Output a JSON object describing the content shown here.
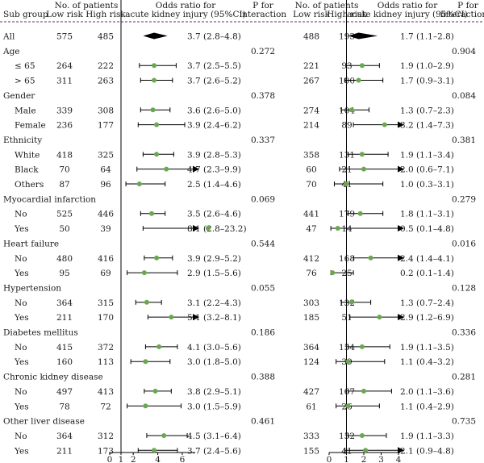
{
  "headers": {
    "subgroup": "Sub group",
    "num_patients": "No. of patients",
    "low_risk": "Low risk",
    "high_risk": "High risk",
    "or_line1": "Odds ratio for",
    "or_line2": "acute kidney injury (95%CI)",
    "p_line1": "P for",
    "p_line2": "interaction"
  },
  "colors": {
    "marker": "#6aa84f",
    "overall": "#000000",
    "line": "#000000",
    "divider": "#6b2a7a"
  },
  "chart_data": {
    "type": "forest",
    "panels": [
      {
        "id": "left",
        "axis_ticks": [
          "0",
          "1",
          "2",
          "4",
          "6"
        ],
        "rows": [
          {
            "label": "All",
            "kind": "overall",
            "low": "575",
            "high": "485",
            "or": 3.7,
            "lo": 2.8,
            "hi": 4.8,
            "text": "3.7 (2.8–4.8)",
            "p": ""
          },
          {
            "label": "Age",
            "kind": "group",
            "p": "0.272"
          },
          {
            "label": "≤ 65",
            "kind": "item",
            "low": "264",
            "high": "222",
            "or": 3.7,
            "lo": 2.5,
            "hi": 5.5,
            "text": "3.7 (2.5–5.5)",
            "p": ""
          },
          {
            "label": "> 65",
            "kind": "item",
            "low": "311",
            "high": "263",
            "or": 3.7,
            "lo": 2.6,
            "hi": 5.2,
            "text": "3.7 (2.6–5.2)",
            "p": ""
          },
          {
            "label": "Gender",
            "kind": "group",
            "p": "0.378"
          },
          {
            "label": "Male",
            "kind": "item",
            "low": "339",
            "high": "308",
            "or": 3.6,
            "lo": 2.6,
            "hi": 5.0,
            "text": "3.6 (2.6–5.0)",
            "p": ""
          },
          {
            "label": "Female",
            "kind": "item",
            "low": "236",
            "high": "177",
            "or": 3.9,
            "lo": 2.4,
            "hi": 6.2,
            "text": "3.9 (2.4–6.2)",
            "p": ""
          },
          {
            "label": "Ethnicity",
            "kind": "group",
            "p": "0.337"
          },
          {
            "label": "White",
            "kind": "item",
            "low": "418",
            "high": "325",
            "or": 3.9,
            "lo": 2.8,
            "hi": 5.3,
            "text": "3.9 (2.8–5.3)",
            "p": ""
          },
          {
            "label": "Black",
            "kind": "item",
            "low": "70",
            "high": "64",
            "or": 4.7,
            "lo": 2.3,
            "hi": 9.9,
            "text": "4.7 (2.3–9.9)",
            "p": ""
          },
          {
            "label": "Others",
            "kind": "item",
            "low": "87",
            "high": "96",
            "or": 2.5,
            "lo": 1.4,
            "hi": 4.6,
            "text": "2.5 (1.4–4.6)",
            "p": ""
          },
          {
            "label": "Myocardial infarction",
            "kind": "group",
            "p": "0.069"
          },
          {
            "label": "No",
            "kind": "item",
            "low": "525",
            "high": "446",
            "or": 3.5,
            "lo": 2.6,
            "hi": 4.6,
            "text": "3.5 (2.6–4.6)",
            "p": ""
          },
          {
            "label": "Yes",
            "kind": "item",
            "low": "50",
            "high": "39",
            "or": 8.1,
            "lo": 2.8,
            "hi": 23.2,
            "text": "8.1 (2.8–23.2)",
            "p": ""
          },
          {
            "label": "Heart failure",
            "kind": "group",
            "p": "0.544"
          },
          {
            "label": "No",
            "kind": "item",
            "low": "480",
            "high": "416",
            "or": 3.9,
            "lo": 2.9,
            "hi": 5.2,
            "text": "3.9 (2.9–5.2)",
            "p": ""
          },
          {
            "label": "Yes",
            "kind": "item",
            "low": "95",
            "high": "69",
            "or": 2.9,
            "lo": 1.5,
            "hi": 5.6,
            "text": "2.9 (1.5–5.6)",
            "p": ""
          },
          {
            "label": "Hypertension",
            "kind": "group",
            "p": "0.055"
          },
          {
            "label": "No",
            "kind": "item",
            "low": "364",
            "high": "315",
            "or": 3.1,
            "lo": 2.2,
            "hi": 4.3,
            "text": "3.1 (2.2–4.3)",
            "p": ""
          },
          {
            "label": "Yes",
            "kind": "item",
            "low": "211",
            "high": "170",
            "or": 5.1,
            "lo": 3.2,
            "hi": 8.1,
            "text": "5.1 (3.2–8.1)",
            "p": ""
          },
          {
            "label": "Diabetes mellitus",
            "kind": "group",
            "p": "0.186"
          },
          {
            "label": "No",
            "kind": "item",
            "low": "415",
            "high": "372",
            "or": 4.1,
            "lo": 3.0,
            "hi": 5.6,
            "text": "4.1 (3.0–5.6)",
            "p": ""
          },
          {
            "label": "Yes",
            "kind": "item",
            "low": "160",
            "high": "113",
            "or": 3.0,
            "lo": 1.8,
            "hi": 5.0,
            "text": "3.0 (1.8–5.0)",
            "p": ""
          },
          {
            "label": "Chronic kidney disease",
            "kind": "group",
            "p": "0.388"
          },
          {
            "label": "No",
            "kind": "item",
            "low": "497",
            "high": "413",
            "or": 3.8,
            "lo": 2.9,
            "hi": 5.1,
            "text": "3.8 (2.9–5.1)",
            "p": ""
          },
          {
            "label": "Yes",
            "kind": "item",
            "low": "78",
            "high": "72",
            "or": 3.0,
            "lo": 1.5,
            "hi": 5.9,
            "text": "3.0 (1.5–5.9)",
            "p": ""
          },
          {
            "label": "Other liver disease",
            "kind": "group",
            "p": "0.461"
          },
          {
            "label": "No",
            "kind": "item",
            "low": "364",
            "high": "312",
            "or": 4.5,
            "lo": 3.1,
            "hi": 6.4,
            "text": "4.5 (3.1–6.4)",
            "p": ""
          },
          {
            "label": "Yes",
            "kind": "item",
            "low": "211",
            "high": "173",
            "or": 3.7,
            "lo": 2.4,
            "hi": 5.6,
            "text": "3.7 (2.4–5.6)",
            "p": ""
          }
        ]
      },
      {
        "id": "right",
        "axis_ticks": [
          "0",
          "1",
          "2",
          "3",
          "4"
        ],
        "rows": [
          {
            "kind": "overall",
            "low": "488",
            "high": "193",
            "or": 1.7,
            "lo": 1.1,
            "hi": 2.8,
            "text": "1.7 (1.1–2.8)",
            "p": ""
          },
          {
            "kind": "group",
            "p": "0.904"
          },
          {
            "kind": "item",
            "low": "221",
            "high": "93",
            "or": 1.9,
            "lo": 1.0,
            "hi": 2.9,
            "text": "1.9 (1.0–2.9)",
            "p": ""
          },
          {
            "kind": "item",
            "low": "267",
            "high": "100",
            "or": 1.7,
            "lo": 0.9,
            "hi": 3.1,
            "text": "1.7 (0.9–3.1)",
            "p": ""
          },
          {
            "kind": "group",
            "p": "0.084"
          },
          {
            "kind": "item",
            "low": "274",
            "high": "104",
            "or": 1.3,
            "lo": 0.7,
            "hi": 2.3,
            "text": "1.3 (0.7–2.3)",
            "p": ""
          },
          {
            "kind": "item",
            "low": "214",
            "high": "89",
            "or": 3.2,
            "lo": 1.4,
            "hi": 7.3,
            "text": "3.2 (1.4–7.3)",
            "p": ""
          },
          {
            "kind": "group",
            "p": "0.381"
          },
          {
            "kind": "item",
            "low": "358",
            "high": "131",
            "or": 1.9,
            "lo": 1.1,
            "hi": 3.4,
            "text": "1.9 (1.1–3.4)",
            "p": ""
          },
          {
            "kind": "item",
            "low": "60",
            "high": "21",
            "or": 2.0,
            "lo": 0.6,
            "hi": 7.1,
            "text": "2.0 (0.6–7.1)",
            "p": ""
          },
          {
            "kind": "item",
            "low": "70",
            "high": "41",
            "or": 1.0,
            "lo": 0.3,
            "hi": 3.1,
            "text": "1.0 (0.3–3.1)",
            "p": ""
          },
          {
            "kind": "group",
            "p": "0.279"
          },
          {
            "kind": "item",
            "low": "441",
            "high": "179",
            "or": 1.8,
            "lo": 1.1,
            "hi": 3.1,
            "text": "1.8 (1.1–3.1)",
            "p": ""
          },
          {
            "kind": "item",
            "low": "47",
            "high": "14",
            "or": 0.5,
            "lo": 0.1,
            "hi": 4.8,
            "text": "0.5 (0.1–4.8)",
            "p": ""
          },
          {
            "kind": "group",
            "p": "0.016"
          },
          {
            "kind": "item",
            "low": "412",
            "high": "168",
            "or": 2.4,
            "lo": 1.4,
            "hi": 4.1,
            "text": "2.4 (1.4–4.1)",
            "p": ""
          },
          {
            "kind": "item",
            "low": "76",
            "high": "25",
            "or": 0.2,
            "lo": 0.1,
            "hi": 1.4,
            "text": "0.2 (0.1–1.4)",
            "p": ""
          },
          {
            "kind": "group",
            "p": "0.128"
          },
          {
            "kind": "item",
            "low": "303",
            "high": "132",
            "or": 1.3,
            "lo": 0.7,
            "hi": 2.4,
            "text": "1.3 (0.7–2.4)",
            "p": ""
          },
          {
            "kind": "item",
            "low": "185",
            "high": "51",
            "or": 2.9,
            "lo": 1.2,
            "hi": 6.9,
            "text": "2.9 (1.2–6.9)",
            "p": ""
          },
          {
            "kind": "group",
            "p": "0.336"
          },
          {
            "kind": "item",
            "low": "364",
            "high": "154",
            "or": 1.9,
            "lo": 1.1,
            "hi": 3.5,
            "text": "1.9 (1.1–3.5)",
            "p": ""
          },
          {
            "kind": "item",
            "low": "124",
            "high": "39",
            "or": 1.1,
            "lo": 0.4,
            "hi": 3.2,
            "text": "1.1 (0.4–3.2)",
            "p": ""
          },
          {
            "kind": "group",
            "p": "0.281"
          },
          {
            "kind": "item",
            "low": "427",
            "high": "167",
            "or": 2.0,
            "lo": 1.1,
            "hi": 3.6,
            "text": "2.0 (1.1–3.6)",
            "p": ""
          },
          {
            "kind": "item",
            "low": "61",
            "high": "26",
            "or": 1.1,
            "lo": 0.4,
            "hi": 2.9,
            "text": "1.1 (0.4–2.9)",
            "p": ""
          },
          {
            "kind": "group",
            "p": "0.735"
          },
          {
            "kind": "item",
            "low": "333",
            "high": "152",
            "or": 1.9,
            "lo": 1.1,
            "hi": 3.3,
            "text": "1.9 (1.1–3.3)",
            "p": ""
          },
          {
            "kind": "item",
            "low": "155",
            "high": "41",
            "or": 2.1,
            "lo": 0.9,
            "hi": 4.8,
            "text": "2.1 (0.9–4.8)",
            "p": ""
          }
        ]
      }
    ]
  }
}
